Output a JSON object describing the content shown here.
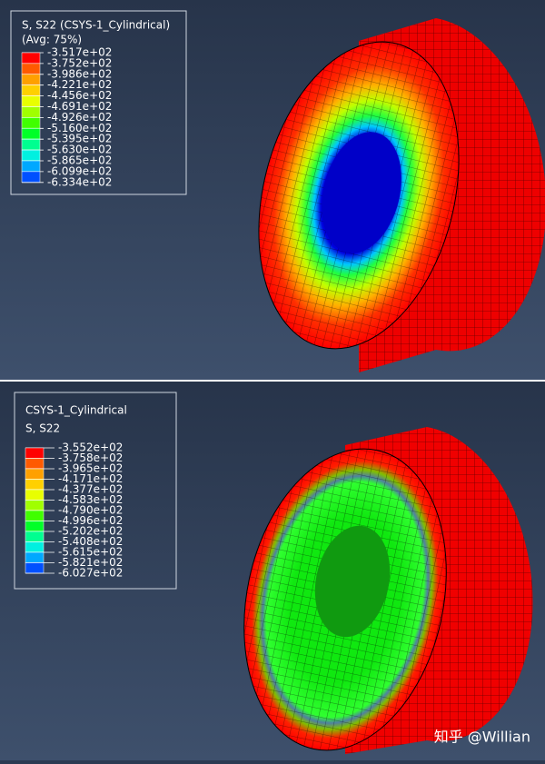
{
  "panels": [
    {
      "legend": {
        "title_lines": [
          "S, S22 (CSYS-1_Cylindrical)",
          "(Avg: 75%)"
        ],
        "labels": [
          "-3.517e+02",
          "-3.752e+02",
          "-3.986e+02",
          "-4.221e+02",
          "-4.456e+02",
          "-4.691e+02",
          "-4.926e+02",
          "-5.160e+02",
          "-5.395e+02",
          "-5.630e+02",
          "-5.865e+02",
          "-6.099e+02",
          "-6.334e+02"
        ]
      }
    },
    {
      "legend": {
        "title_lines": [
          "CSYS-1_Cylindrical",
          "S, S22"
        ],
        "labels": [
          "-3.552e+02",
          "-3.758e+02",
          "-3.965e+02",
          "-4.171e+02",
          "-4.377e+02",
          "-4.583e+02",
          "-4.790e+02",
          "-4.996e+02",
          "-5.202e+02",
          "-5.408e+02",
          "-5.615e+02",
          "-5.821e+02",
          "-6.027e+02"
        ]
      }
    }
  ],
  "colors": [
    "#ff0000",
    "#ff5a00",
    "#ffa000",
    "#ffd000",
    "#e8ff00",
    "#a0ff00",
    "#40ff00",
    "#00ff28",
    "#00ff90",
    "#00f0e0",
    "#00a8ff",
    "#0050ff",
    "#0000ff"
  ],
  "watermark": "知乎 @Willian"
}
